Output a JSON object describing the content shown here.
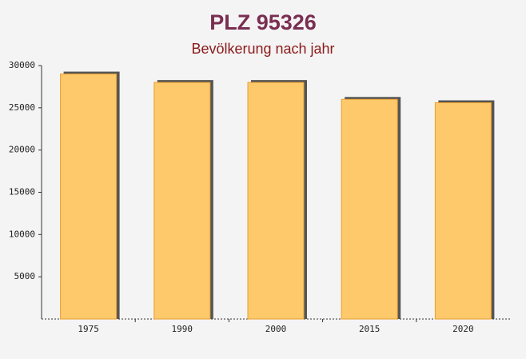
{
  "chart_data": {
    "type": "bar",
    "title": "PLZ 95326",
    "subtitle": "Bevölkerung nach jahr",
    "categories": [
      "1975",
      "1990",
      "2000",
      "2015",
      "2020"
    ],
    "values": [
      29000,
      28000,
      28000,
      26000,
      25600
    ],
    "color": "#fdc96b",
    "ylim": [
      0,
      30000
    ],
    "yticks": [
      5000,
      10000,
      15000,
      20000,
      25000,
      30000
    ],
    "grid": false
  }
}
